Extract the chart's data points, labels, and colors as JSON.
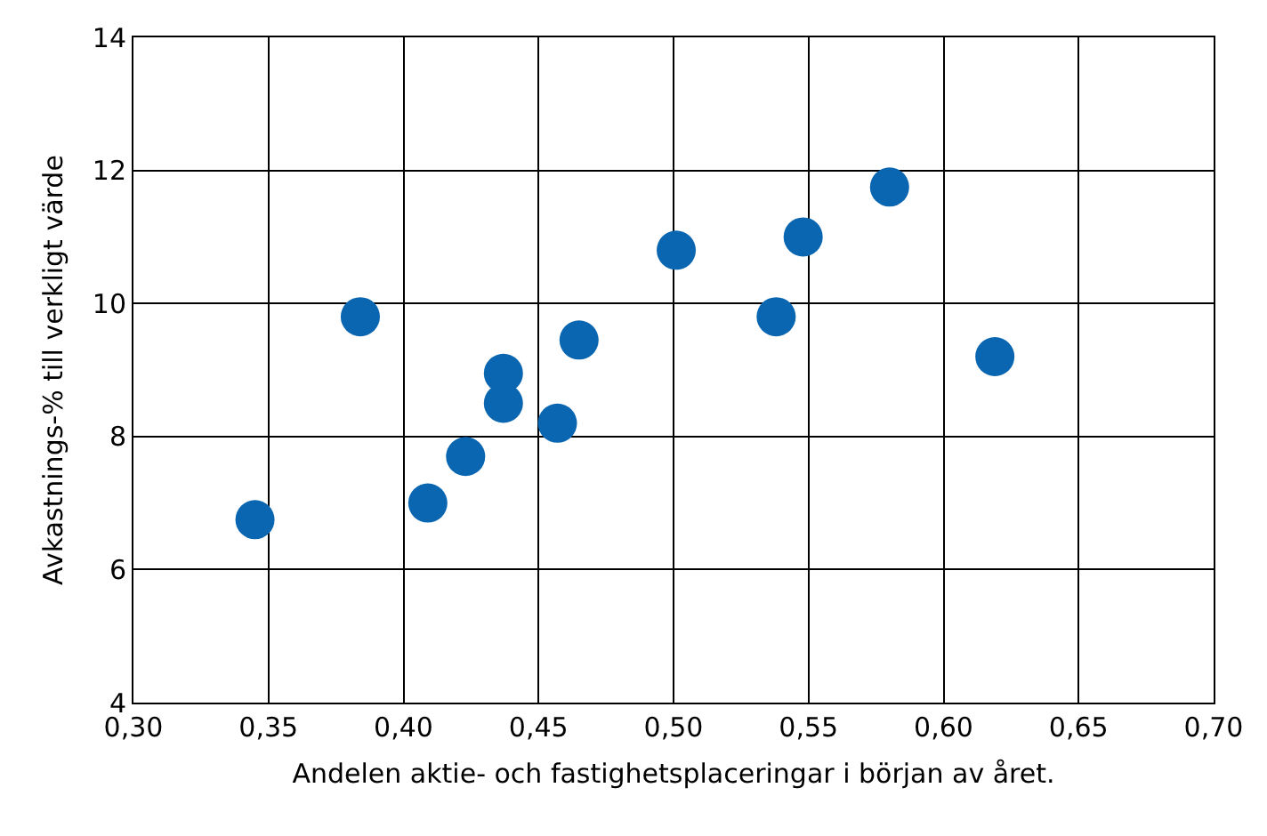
{
  "chart_data": {
    "type": "scatter",
    "xlabel": "Andelen aktie- och fastighetsplaceringar i början av året.",
    "ylabel": "Avkastnings-% till verkligt värde",
    "x": [
      0.345,
      0.384,
      0.409,
      0.423,
      0.437,
      0.437,
      0.457,
      0.465,
      0.501,
      0.538,
      0.548,
      0.58,
      0.619
    ],
    "series": [
      {
        "color": "#0a66b0",
        "values": [
          6.75,
          9.8,
          7.0,
          7.7,
          8.5,
          8.95,
          8.2,
          9.45,
          10.8,
          9.8,
          11.0,
          11.75,
          9.2
        ]
      }
    ],
    "xlim": [
      0.3,
      0.7
    ],
    "xticks": [
      {
        "value": 0.3,
        "label": "0,30"
      },
      {
        "value": 0.35,
        "label": "0,35"
      },
      {
        "value": 0.4,
        "label": "0,40"
      },
      {
        "value": 0.45,
        "label": "0,45"
      },
      {
        "value": 0.5,
        "label": "0,50"
      },
      {
        "value": 0.55,
        "label": "0,55"
      },
      {
        "value": 0.6,
        "label": "0,60"
      },
      {
        "value": 0.65,
        "label": "0,65"
      },
      {
        "value": 0.7,
        "label": "0,70"
      }
    ],
    "ylim": [
      4,
      14
    ],
    "yticks": [
      4,
      6,
      8,
      10,
      12,
      14
    ],
    "grid": true,
    "marker": "circle"
  }
}
